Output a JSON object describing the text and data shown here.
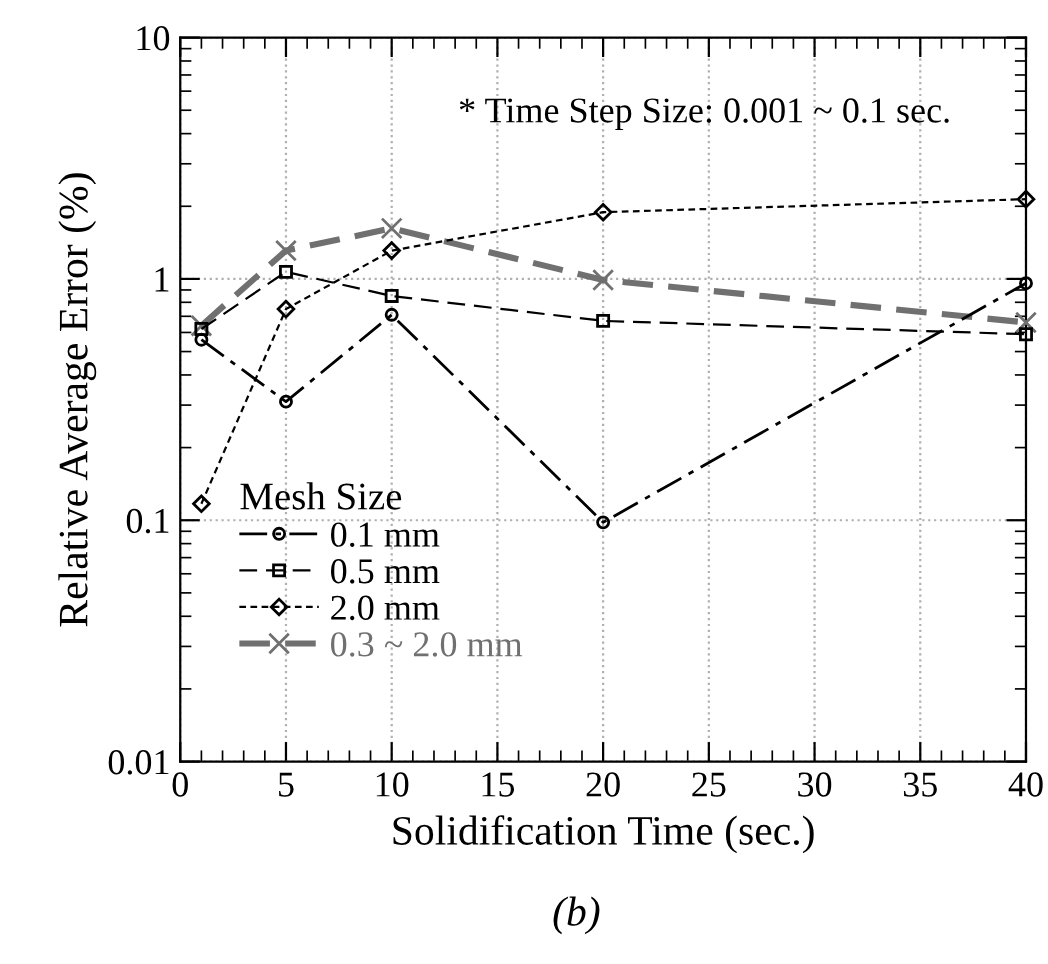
{
  "chart_data": {
    "type": "line",
    "xlabel": "Solidification Time (sec.)",
    "ylabel": "Relative Average Error (%)",
    "x": [
      1,
      5,
      10,
      20,
      40
    ],
    "series": [
      {
        "name": "0.1 mm",
        "color": "#000000",
        "values": [
          0.56,
          0.31,
          0.71,
          0.098,
          0.96
        ],
        "marker": "circle",
        "line_style": "dashed"
      },
      {
        "name": "0.5 mm",
        "color": "#000000",
        "values": [
          0.62,
          1.07,
          0.85,
          0.67,
          0.59
        ],
        "marker": "square",
        "line_style": "dashed"
      },
      {
        "name": "2.0 mm",
        "color": "#000000",
        "values": [
          0.117,
          0.75,
          1.31,
          1.89,
          2.14
        ],
        "marker": "diamond",
        "line_style": "dashed"
      },
      {
        "name": "0.3 ~ 2.0 mm",
        "color": "#707070",
        "values": [
          0.64,
          1.31,
          1.62,
          0.99,
          0.66
        ],
        "marker": "cross",
        "line_style": "dashed"
      }
    ],
    "log": "y",
    "xlim": [
      0,
      40
    ],
    "xticks": [
      0,
      5,
      10,
      15,
      20,
      25,
      30,
      35,
      40
    ],
    "ylim": [
      0.01,
      10
    ],
    "yticks": [
      0.01,
      0.1,
      1,
      10
    ],
    "grid": true,
    "legend": "bottom left",
    "legend_title": "Mesh Size",
    "annotations": [
      "* Time Step Size: 0.001 ~ 0.1 sec.",
      "(b)"
    ]
  }
}
